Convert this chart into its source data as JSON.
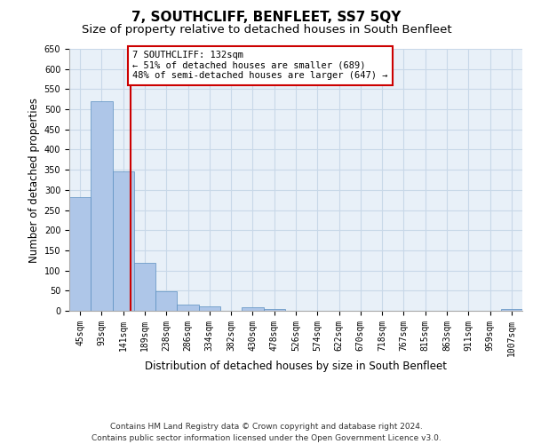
{
  "title": "7, SOUTHCLIFF, BENFLEET, SS7 5QY",
  "subtitle": "Size of property relative to detached houses in South Benfleet",
  "xlabel": "Distribution of detached houses by size in South Benfleet",
  "ylabel": "Number of detached properties",
  "footer_line1": "Contains HM Land Registry data © Crown copyright and database right 2024.",
  "footer_line2": "Contains public sector information licensed under the Open Government Licence v3.0.",
  "bin_labels": [
    "45sqm",
    "93sqm",
    "141sqm",
    "189sqm",
    "238sqm",
    "286sqm",
    "334sqm",
    "382sqm",
    "430sqm",
    "478sqm",
    "526sqm",
    "574sqm",
    "622sqm",
    "670sqm",
    "718sqm",
    "767sqm",
    "815sqm",
    "863sqm",
    "911sqm",
    "959sqm",
    "1007sqm"
  ],
  "bar_values": [
    283,
    521,
    347,
    120,
    48,
    16,
    10,
    0,
    8,
    5,
    0,
    0,
    0,
    0,
    0,
    0,
    0,
    0,
    0,
    0,
    5
  ],
  "bar_color": "#aec6e8",
  "bar_edge_color": "#5a8fc0",
  "grid_color": "#c8d8e8",
  "plot_bg_color": "#e8f0f8",
  "red_line_x": 2.83,
  "annotation_text_line1": "7 SOUTHCLIFF: 132sqm",
  "annotation_text_line2": "← 51% of detached houses are smaller (689)",
  "annotation_text_line3": "48% of semi-detached houses are larger (647) →",
  "annotation_box_color": "#ffffff",
  "annotation_box_edge": "#cc0000",
  "ylim": [
    0,
    650
  ],
  "yticks": [
    0,
    50,
    100,
    150,
    200,
    250,
    300,
    350,
    400,
    450,
    500,
    550,
    600,
    650
  ],
  "title_fontsize": 11,
  "subtitle_fontsize": 9.5,
  "label_fontsize": 8.5,
  "tick_fontsize": 7,
  "annotation_fontsize": 7.5,
  "footer_fontsize": 6.5
}
